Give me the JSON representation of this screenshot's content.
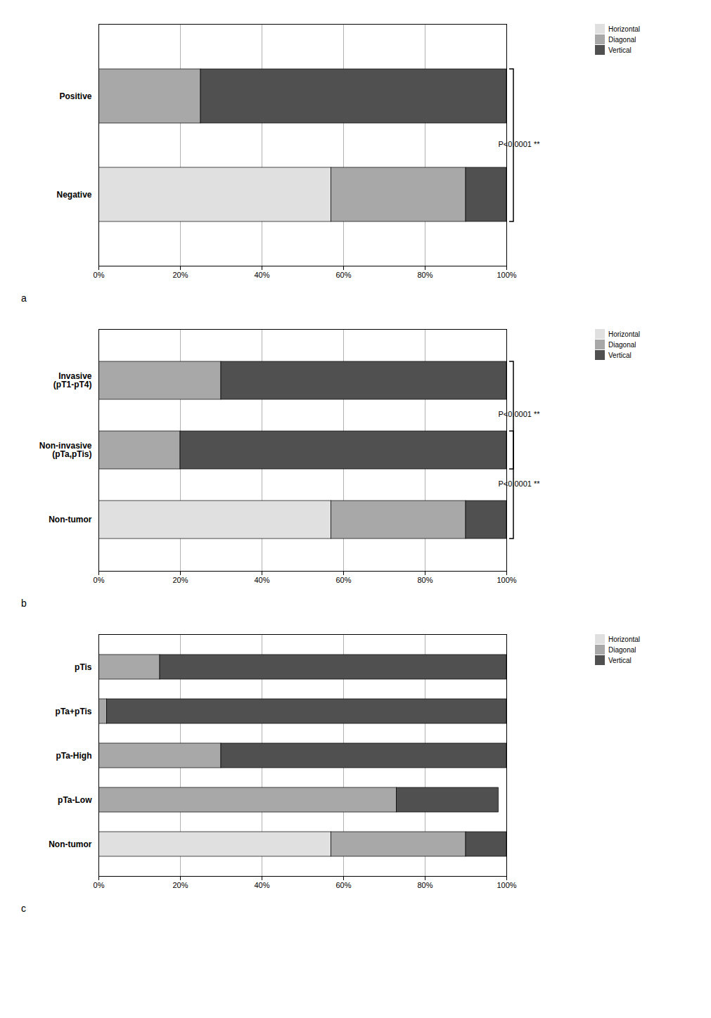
{
  "chart_data": [
    {
      "type": "bar",
      "orientation": "horizontal",
      "stacked": true,
      "title": "a",
      "categories": [
        "Positive",
        "Negative"
      ],
      "series": [
        {
          "name": "Horizontal",
          "color": "#e0e0e0",
          "values": [
            0,
            57
          ]
        },
        {
          "name": "Diagonal",
          "color": "#a8a8a8",
          "values": [
            25,
            33
          ]
        },
        {
          "name": "Vertical",
          "color": "#505050",
          "values": [
            75,
            10
          ]
        }
      ],
      "xlim": [
        0,
        100
      ],
      "xticks": [
        {
          "value": 0,
          "label": "0%"
        },
        {
          "value": 20,
          "label": "20%"
        },
        {
          "value": 40,
          "label": "40%"
        },
        {
          "value": 60,
          "label": "60%"
        },
        {
          "value": 80,
          "label": "80%"
        },
        {
          "value": 100,
          "label": "100%"
        }
      ],
      "grid": true,
      "legend": "right",
      "annotations": [
        {
          "text": "P<0.0001 **",
          "from": "Positive",
          "to": "Negative"
        }
      ]
    },
    {
      "type": "bar",
      "orientation": "horizontal",
      "stacked": true,
      "title": "b",
      "categories": [
        "Invasive\n(pT1-pT4)",
        "Non-invasive\n(pTa,pTis)",
        "Non-tumor"
      ],
      "series": [
        {
          "name": "Horizontal",
          "color": "#e0e0e0",
          "values": [
            0,
            0,
            57
          ]
        },
        {
          "name": "Diagonal",
          "color": "#a8a8a8",
          "values": [
            30,
            20,
            33
          ]
        },
        {
          "name": "Vertical",
          "color": "#505050",
          "values": [
            70,
            80,
            10
          ]
        }
      ],
      "xlim": [
        0,
        100
      ],
      "xticks": [
        {
          "value": 0,
          "label": "0%"
        },
        {
          "value": 20,
          "label": "20%"
        },
        {
          "value": 40,
          "label": "40%"
        },
        {
          "value": 60,
          "label": "60%"
        },
        {
          "value": 80,
          "label": "80%"
        },
        {
          "value": 100,
          "label": "100%"
        }
      ],
      "grid": true,
      "legend": "right",
      "annotations": [
        {
          "text": "P<0.0001 **",
          "from": "Invasive\n(pT1-pT4)",
          "to": "Non-invasive\n(pTa,pTis)"
        },
        {
          "text": "P<0.0001 **",
          "from": "Non-invasive\n(pTa,pTis)",
          "to": "Non-tumor"
        }
      ]
    },
    {
      "type": "bar",
      "orientation": "horizontal",
      "stacked": true,
      "title": "c",
      "categories": [
        "pTis",
        "pTa+pTis",
        "pTa-High",
        "pTa-Low",
        "Non-tumor"
      ],
      "series": [
        {
          "name": "Horizontal",
          "color": "#e0e0e0",
          "values": [
            0,
            0,
            0,
            0,
            57
          ]
        },
        {
          "name": "Diagonal",
          "color": "#a8a8a8",
          "values": [
            15,
            2,
            30,
            73,
            33
          ]
        },
        {
          "name": "Vertical",
          "color": "#505050",
          "values": [
            85,
            98,
            70,
            25,
            10
          ]
        }
      ],
      "xlim": [
        0,
        100
      ],
      "xticks": [
        {
          "value": 0,
          "label": "0%"
        },
        {
          "value": 20,
          "label": "20%"
        },
        {
          "value": 40,
          "label": "40%"
        },
        {
          "value": 60,
          "label": "60%"
        },
        {
          "value": 80,
          "label": "80%"
        },
        {
          "value": 100,
          "label": "100%"
        }
      ],
      "grid": true,
      "legend": "right"
    }
  ]
}
